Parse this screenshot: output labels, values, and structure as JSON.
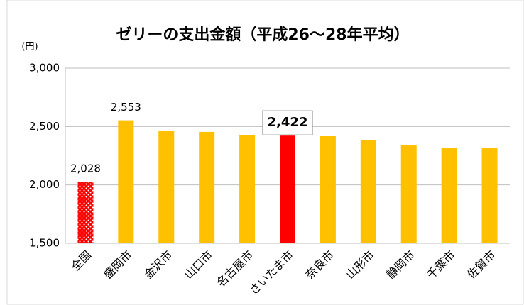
{
  "chart_data": {
    "type": "bar",
    "title": "ゼリーの支出金額（平成26～28年平均）",
    "unit_label": "(円)",
    "categories": [
      "全国",
      "盛岡市",
      "金沢市",
      "山口市",
      "名古屋市",
      "さいたま市",
      "奈良市",
      "山形市",
      "静岡市",
      "千葉市",
      "佐賀市"
    ],
    "values": [
      2028,
      2553,
      2466,
      2454,
      2429,
      2422,
      2417,
      2381,
      2344,
      2320,
      2314
    ],
    "value_labels": [
      "2,028",
      "2,553",
      null,
      null,
      null,
      "2,422",
      null,
      null,
      null,
      null,
      null
    ],
    "colors": [
      "#ff0000",
      "#ffc000",
      "#ffc000",
      "#ffc000",
      "#ffc000",
      "#ff0000",
      "#ffc000",
      "#ffc000",
      "#ffc000",
      "#ffc000",
      "#ffc000"
    ],
    "dotted": [
      true,
      false,
      false,
      false,
      false,
      false,
      false,
      false,
      false,
      false,
      false
    ],
    "boxed_labels": [
      false,
      false,
      false,
      false,
      false,
      true,
      false,
      false,
      false,
      false,
      false
    ],
    "ylim": [
      1500,
      3000
    ],
    "yticks": [
      {
        "value": 1500,
        "label": "1,500"
      },
      {
        "value": 2000,
        "label": "2,000"
      },
      {
        "value": 2500,
        "label": "2,500"
      },
      {
        "value": 3000,
        "label": "3,000"
      }
    ],
    "grid": true
  }
}
